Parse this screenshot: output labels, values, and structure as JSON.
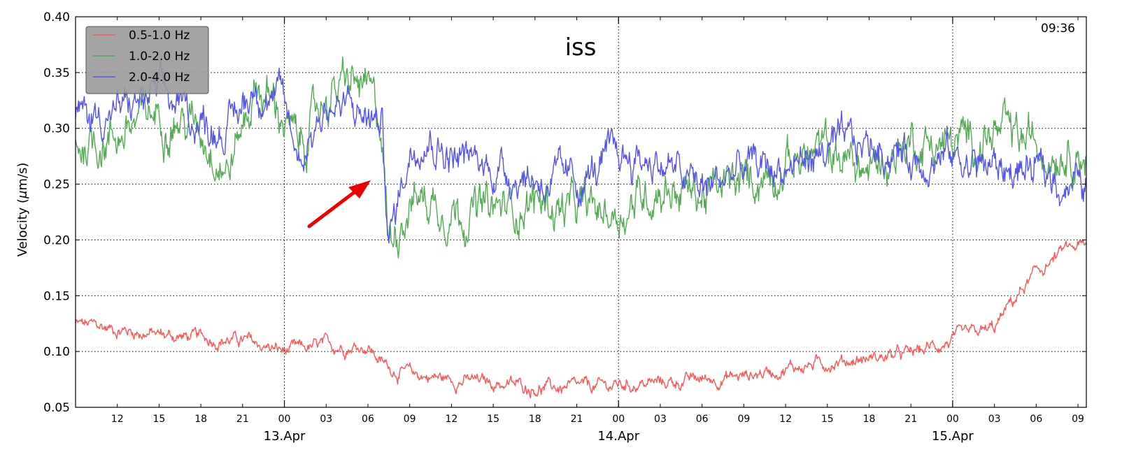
{
  "chart_data": {
    "type": "line",
    "title": "iss",
    "corner_label": "09:36",
    "ylabel": "Velocity (μm/s)",
    "ylabel_pre": "Velocity (",
    "ylabel_mu": "μ",
    "ylabel_post": "m/s)",
    "ylim": [
      0.05,
      0.4
    ],
    "yticks": [
      "0.05",
      "0.10",
      "0.15",
      "0.20",
      "0.25",
      "0.30",
      "0.35",
      "0.40"
    ],
    "xlim": [
      "2016-04-12 09:00",
      "2016-04-15 09:36"
    ],
    "xtick_hours": [
      12,
      15,
      18,
      21,
      24,
      27,
      30,
      33,
      36,
      39,
      42,
      45,
      48,
      51,
      54,
      57,
      60,
      63,
      66,
      69,
      72,
      75,
      78,
      81
    ],
    "xtick_labels": [
      "12",
      "15",
      "18",
      "21",
      "00",
      "03",
      "06",
      "09",
      "12",
      "15",
      "18",
      "21",
      "00",
      "03",
      "06",
      "09",
      "12",
      "15",
      "18",
      "21",
      "00",
      "03",
      "06",
      "09"
    ],
    "date_labels": [
      "13.Apr",
      "14.Apr",
      "15.Apr"
    ],
    "date_hours": [
      24,
      48,
      72
    ],
    "grid": true,
    "legend_position": "top-left",
    "annotation": "red arrow pointing to sudden drop around 13.Apr 07:00",
    "series": [
      {
        "name": "0.5-1.0 Hz",
        "color": "#ff5555",
        "x_hours": [
          9,
          12,
          15,
          18,
          21,
          23,
          24,
          27,
          30,
          31,
          32,
          33,
          36,
          39,
          42,
          45,
          48,
          51,
          54,
          57,
          60,
          63,
          66,
          69,
          72,
          75,
          76,
          78,
          80,
          81,
          81.6
        ],
        "values": [
          0.125,
          0.12,
          0.115,
          0.112,
          0.11,
          0.103,
          0.1,
          0.105,
          0.105,
          0.09,
          0.083,
          0.08,
          0.075,
          0.072,
          0.068,
          0.067,
          0.07,
          0.072,
          0.075,
          0.078,
          0.085,
          0.09,
          0.094,
          0.098,
          0.11,
          0.12,
          0.14,
          0.17,
          0.19,
          0.195,
          0.192
        ]
      },
      {
        "name": "1.0-2.0 Hz",
        "color": "#55aa55",
        "x_hours": [
          9,
          12,
          15,
          18,
          20,
          22,
          24,
          25,
          27,
          29,
          30,
          31,
          31.5,
          33,
          36,
          39,
          42,
          45,
          48,
          51,
          54,
          57,
          60,
          63,
          66,
          69,
          72,
          75,
          78,
          81,
          81.6
        ],
        "values": [
          0.285,
          0.295,
          0.315,
          0.3,
          0.265,
          0.34,
          0.31,
          0.28,
          0.33,
          0.34,
          0.33,
          0.3,
          0.195,
          0.24,
          0.23,
          0.225,
          0.235,
          0.225,
          0.225,
          0.25,
          0.24,
          0.25,
          0.27,
          0.28,
          0.26,
          0.29,
          0.285,
          0.295,
          0.285,
          0.285,
          0.275
        ]
      },
      {
        "name": "2.0-4.0 Hz",
        "color": "#5555ee",
        "x_hours": [
          9,
          12,
          15,
          18,
          20,
          22,
          24,
          25,
          27,
          29,
          30,
          31,
          31.5,
          33,
          34,
          36,
          39,
          42,
          45,
          48,
          51,
          54,
          57,
          60,
          63,
          66,
          69,
          72,
          75,
          78,
          81,
          81.6
        ],
        "values": [
          0.31,
          0.315,
          0.33,
          0.305,
          0.3,
          0.34,
          0.32,
          0.275,
          0.32,
          0.315,
          0.31,
          0.305,
          0.2,
          0.28,
          0.3,
          0.275,
          0.265,
          0.255,
          0.25,
          0.275,
          0.27,
          0.245,
          0.265,
          0.265,
          0.28,
          0.285,
          0.275,
          0.275,
          0.265,
          0.26,
          0.25,
          0.245
        ]
      }
    ]
  }
}
